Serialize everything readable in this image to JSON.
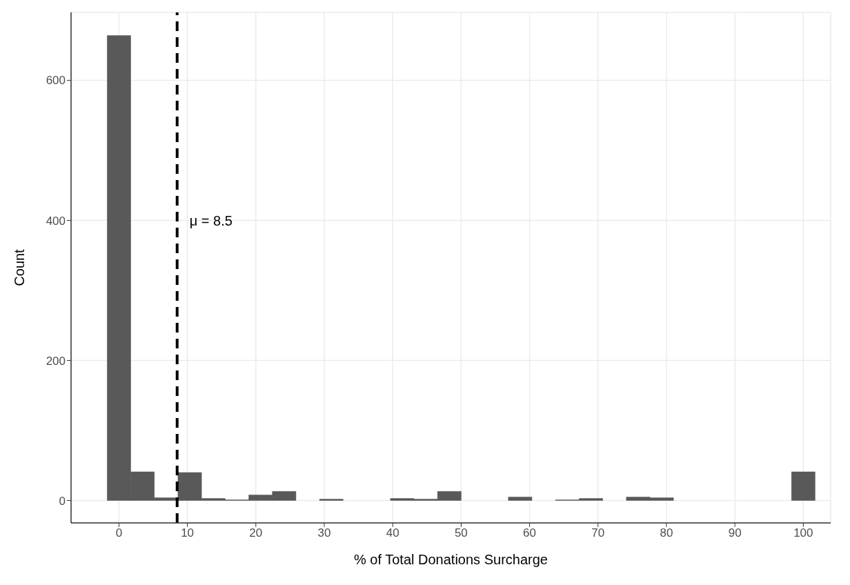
{
  "chart_data": {
    "type": "histogram",
    "xlabel": "% of Total Donations Surcharge",
    "ylabel": "Count",
    "color": "#595959",
    "bins": [
      -1.72,
      1.72,
      5.17,
      8.62,
      12.07,
      15.52,
      18.97,
      22.41,
      25.86,
      29.31,
      32.76,
      36.21,
      39.66,
      43.1,
      46.55,
      50,
      53.45,
      56.9,
      60.34,
      63.79,
      67.24,
      70.69,
      74.14,
      77.59,
      81.03,
      84.48,
      87.93,
      91.38,
      94.83,
      98.28,
      101.72
    ],
    "values": [
      664,
      41,
      4,
      40,
      3,
      1,
      8,
      13,
      0,
      2,
      0,
      0,
      3,
      2,
      13,
      0,
      0,
      5,
      0,
      1,
      3,
      0,
      5,
      4,
      0,
      0,
      0,
      0,
      0,
      41
    ],
    "xlim": [
      -7,
      104
    ],
    "xticks": [
      0,
      10,
      20,
      30,
      40,
      50,
      60,
      70,
      80,
      90,
      100
    ],
    "ylim": [
      -32,
      697
    ],
    "yticks": [
      0,
      200,
      400,
      600
    ],
    "grid": true,
    "ref_lines": [
      {
        "axis": "x",
        "value": 8.5,
        "color": "#000000",
        "line_style": "dashed"
      }
    ],
    "annotations": [
      {
        "text": "μ = 8.5",
        "x": 8.5,
        "y": 400
      }
    ]
  }
}
